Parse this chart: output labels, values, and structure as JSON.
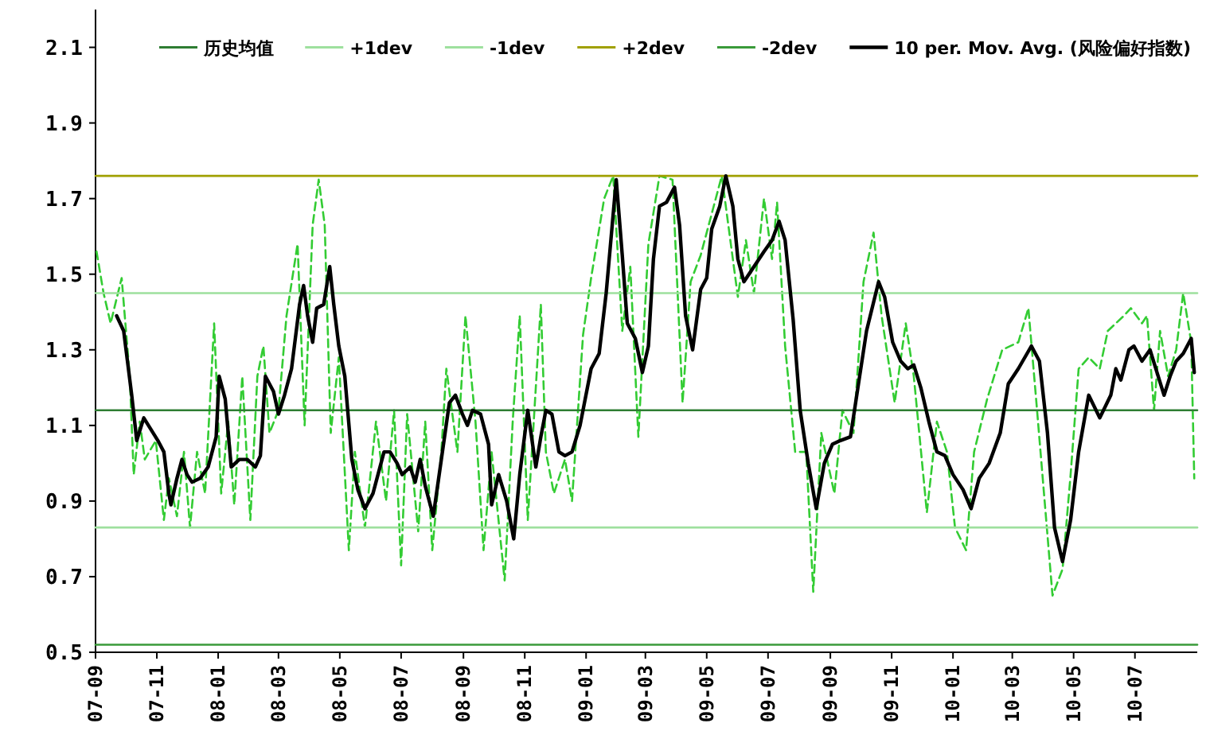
{
  "chart_data": {
    "type": "line",
    "legend": "top",
    "ylim": [
      0.5,
      2.2
    ],
    "yticks": [
      0.5,
      0.7,
      0.9,
      1.1,
      1.3,
      1.5,
      1.7,
      1.9,
      2.1
    ],
    "xlim": [
      "2007-09-01",
      "2010-09-01"
    ],
    "xticks": [
      {
        "value": "2007-09-01",
        "label": "07-09"
      },
      {
        "value": "2007-11-01",
        "label": "07-11"
      },
      {
        "value": "2008-01-01",
        "label": "08-01"
      },
      {
        "value": "2008-03-01",
        "label": "08-03"
      },
      {
        "value": "2008-05-01",
        "label": "08-05"
      },
      {
        "value": "2008-07-01",
        "label": "08-07"
      },
      {
        "value": "2008-09-01",
        "label": "08-09"
      },
      {
        "value": "2008-11-01",
        "label": "08-11"
      },
      {
        "value": "2009-01-01",
        "label": "09-01"
      },
      {
        "value": "2009-03-01",
        "label": "09-03"
      },
      {
        "value": "2009-05-01",
        "label": "09-05"
      },
      {
        "value": "2009-07-01",
        "label": "09-07"
      },
      {
        "value": "2009-09-01",
        "label": "09-09"
      },
      {
        "value": "2009-11-01",
        "label": "09-11"
      },
      {
        "value": "2010-01-01",
        "label": "10-01"
      },
      {
        "value": "2010-03-01",
        "label": "10-03"
      },
      {
        "value": "2010-05-01",
        "label": "10-05"
      },
      {
        "value": "2010-07-01",
        "label": "10-07"
      }
    ],
    "series": [
      {
        "color": "#33cc33",
        "line_style": "dashed",
        "x": [
          "2007-09-02",
          "2007-09-09",
          "2007-09-16",
          "2007-09-27",
          "2007-10-05",
          "2007-10-09",
          "2007-10-15",
          "2007-10-20",
          "2007-10-31",
          "2007-11-08",
          "2007-11-13",
          "2007-11-21",
          "2007-11-28",
          "2007-12-04",
          "2007-12-11",
          "2007-12-19",
          "2007-12-28",
          "2008-01-04",
          "2008-01-11",
          "2008-01-17",
          "2008-01-25",
          "2008-02-02",
          "2008-02-09",
          "2008-02-15",
          "2008-02-21",
          "2008-03-01",
          "2008-03-09",
          "2008-03-20",
          "2008-03-27",
          "2008-04-04",
          "2008-04-10",
          "2008-04-16",
          "2008-04-22",
          "2008-04-30",
          "2008-05-10",
          "2008-05-16",
          "2008-05-26",
          "2008-06-06",
          "2008-06-16",
          "2008-06-24",
          "2008-07-01",
          "2008-07-07",
          "2008-07-18",
          "2008-07-25",
          "2008-08-01",
          "2008-08-10",
          "2008-08-15",
          "2008-08-26",
          "2008-09-03",
          "2008-09-13",
          "2008-09-21",
          "2008-09-29",
          "2008-10-12",
          "2008-10-20",
          "2008-10-27",
          "2008-11-04",
          "2008-11-17",
          "2008-11-22",
          "2008-11-30",
          "2008-12-11",
          "2008-12-18",
          "2008-12-29",
          "2009-01-06",
          "2009-01-19",
          "2009-01-28",
          "2009-02-06",
          "2009-02-14",
          "2009-02-22",
          "2009-03-04",
          "2009-03-15",
          "2009-03-28",
          "2009-04-07",
          "2009-04-15",
          "2009-04-25",
          "2009-05-06",
          "2009-05-16",
          "2009-06-01",
          "2009-06-09",
          "2009-06-17",
          "2009-06-27",
          "2009-07-05",
          "2009-07-10",
          "2009-07-18",
          "2009-07-28",
          "2009-08-08",
          "2009-08-15",
          "2009-08-23",
          "2009-09-05",
          "2009-09-13",
          "2009-09-24",
          "2009-10-04",
          "2009-10-14",
          "2009-10-22",
          "2009-11-04",
          "2009-11-15",
          "2009-11-23",
          "2009-12-06",
          "2009-12-16",
          "2009-12-26",
          "2010-01-03",
          "2010-01-14",
          "2010-01-22",
          "2010-02-04",
          "2010-02-19",
          "2010-03-07",
          "2010-03-17",
          "2010-03-25",
          "2010-04-10",
          "2010-04-20",
          "2010-04-28",
          "2010-05-06",
          "2010-05-16",
          "2010-05-27",
          "2010-06-04",
          "2010-06-20",
          "2010-06-27",
          "2010-07-08",
          "2010-07-13",
          "2010-07-20",
          "2010-07-26",
          "2010-08-03",
          "2010-08-11",
          "2010-08-18",
          "2010-08-26",
          "2010-08-29"
        ],
        "values": [
          1.56,
          1.45,
          1.37,
          1.49,
          1.23,
          0.97,
          1.11,
          1.01,
          1.06,
          0.85,
          0.96,
          0.86,
          1.03,
          0.83,
          1.03,
          0.92,
          1.37,
          0.92,
          1.11,
          0.89,
          1.23,
          0.85,
          1.23,
          1.31,
          1.08,
          1.14,
          1.39,
          1.58,
          1.1,
          1.63,
          1.75,
          1.63,
          1.08,
          1.28,
          0.77,
          1.03,
          0.83,
          1.11,
          0.9,
          1.14,
          0.73,
          1.13,
          0.82,
          1.11,
          0.77,
          1.03,
          1.25,
          1.03,
          1.39,
          1.11,
          0.77,
          1.03,
          0.69,
          1.11,
          1.39,
          0.85,
          1.42,
          1.03,
          0.92,
          1.01,
          0.9,
          1.34,
          1.49,
          1.7,
          1.76,
          1.35,
          1.52,
          1.07,
          1.58,
          1.76,
          1.75,
          1.16,
          1.48,
          1.55,
          1.66,
          1.76,
          1.44,
          1.59,
          1.45,
          1.7,
          1.54,
          1.69,
          1.31,
          1.03,
          1.03,
          0.66,
          1.08,
          0.92,
          1.14,
          1.08,
          1.48,
          1.61,
          1.39,
          1.16,
          1.37,
          1.23,
          0.87,
          1.11,
          1.03,
          0.83,
          0.77,
          1.03,
          1.17,
          1.3,
          1.32,
          1.41,
          1.16,
          0.65,
          0.72,
          0.97,
          1.25,
          1.28,
          1.25,
          1.35,
          1.39,
          1.41,
          1.37,
          1.39,
          1.14,
          1.35,
          1.23,
          1.3,
          1.45,
          1.32,
          0.96
        ]
      },
      {
        "name": "历史均值",
        "color": "#2e7d32",
        "line_style": "solid",
        "x": [
          "2007-09-01",
          "2010-09-01"
        ],
        "values": [
          1.14,
          1.14
        ]
      },
      {
        "name": "+1dev",
        "color": "#9ee09e",
        "line_style": "solid",
        "x": [
          "2007-09-01",
          "2010-09-01"
        ],
        "values": [
          1.45,
          1.45
        ]
      },
      {
        "name": "-1dev",
        "color": "#9ee09e",
        "line_style": "solid",
        "x": [
          "2007-09-01",
          "2010-09-01"
        ],
        "values": [
          0.83,
          0.83
        ]
      },
      {
        "name": "+2dev",
        "color": "#a0a000",
        "line_style": "solid",
        "x": [
          "2007-09-01",
          "2010-09-01"
        ],
        "values": [
          1.76,
          1.76
        ]
      },
      {
        "name": "-2dev",
        "color": "#3a9a3a",
        "line_style": "solid",
        "x": [
          "2007-09-01",
          "2010-09-01"
        ],
        "values": [
          0.52,
          0.52
        ]
      },
      {
        "name": "10 per. Mov. Avg. (风险偏好指数)",
        "color": "#000000",
        "line_style": "solid",
        "x": [
          "2007-09-22",
          "2007-09-29",
          "2007-10-07",
          "2007-10-12",
          "2007-10-19",
          "2007-10-26",
          "2007-11-02",
          "2007-11-08",
          "2007-11-13",
          "2007-11-15",
          "2007-11-21",
          "2007-11-26",
          "2007-12-01",
          "2007-12-06",
          "2007-12-14",
          "2007-12-22",
          "2007-12-30",
          "2008-01-02",
          "2008-01-08",
          "2008-01-14",
          "2008-01-22",
          "2008-01-30",
          "2008-02-07",
          "2008-02-12",
          "2008-02-17",
          "2008-02-25",
          "2008-03-01",
          "2008-03-07",
          "2008-03-14",
          "2008-03-22",
          "2008-03-26",
          "2008-03-30",
          "2008-04-04",
          "2008-04-08",
          "2008-04-15",
          "2008-04-21",
          "2008-04-25",
          "2008-04-30",
          "2008-05-06",
          "2008-05-13",
          "2008-05-19",
          "2008-05-26",
          "2008-06-03",
          "2008-06-14",
          "2008-06-20",
          "2008-06-27",
          "2008-07-02",
          "2008-07-10",
          "2008-07-15",
          "2008-07-20",
          "2008-07-25",
          "2008-08-02",
          "2008-08-10",
          "2008-08-18",
          "2008-08-24",
          "2008-08-31",
          "2008-09-05",
          "2008-09-10",
          "2008-09-18",
          "2008-09-26",
          "2008-09-29",
          "2008-10-06",
          "2008-10-14",
          "2008-10-21",
          "2008-10-27",
          "2008-11-04",
          "2008-11-12",
          "2008-11-17",
          "2008-11-22",
          "2008-11-28",
          "2008-12-05",
          "2008-12-11",
          "2008-12-18",
          "2008-12-26",
          "2009-01-06",
          "2009-01-14",
          "2009-01-21",
          "2009-01-31",
          "2009-02-06",
          "2009-02-11",
          "2009-02-19",
          "2009-02-26",
          "2009-03-04",
          "2009-03-09",
          "2009-03-15",
          "2009-03-22",
          "2009-03-30",
          "2009-04-04",
          "2009-04-10",
          "2009-04-17",
          "2009-04-25",
          "2009-05-01",
          "2009-05-06",
          "2009-05-14",
          "2009-05-20",
          "2009-05-27",
          "2009-06-01",
          "2009-06-07",
          "2009-06-17",
          "2009-06-27",
          "2009-07-05",
          "2009-07-12",
          "2009-07-18",
          "2009-07-26",
          "2009-08-02",
          "2009-08-10",
          "2009-08-18",
          "2009-08-26",
          "2009-09-03",
          "2009-09-11",
          "2009-09-21",
          "2009-09-29",
          "2009-10-07",
          "2009-10-19",
          "2009-10-25",
          "2009-11-02",
          "2009-11-10",
          "2009-11-17",
          "2009-11-23",
          "2009-11-30",
          "2009-12-08",
          "2009-12-16",
          "2009-12-24",
          "2010-01-01",
          "2010-01-11",
          "2010-01-19",
          "2010-01-27",
          "2010-02-06",
          "2010-02-17",
          "2010-02-25",
          "2010-03-07",
          "2010-03-20",
          "2010-03-28",
          "2010-04-05",
          "2010-04-12",
          "2010-04-20",
          "2010-04-28",
          "2010-05-06",
          "2010-05-16",
          "2010-05-27",
          "2010-06-07",
          "2010-06-12",
          "2010-06-17",
          "2010-06-25",
          "2010-06-30",
          "2010-07-08",
          "2010-07-16",
          "2010-07-23",
          "2010-07-30",
          "2010-08-05",
          "2010-08-11",
          "2010-08-18",
          "2010-08-24",
          "2010-08-26",
          "2010-08-29"
        ],
        "values": [
          1.39,
          1.35,
          1.18,
          1.06,
          1.12,
          1.09,
          1.06,
          1.03,
          0.92,
          0.89,
          0.96,
          1.01,
          0.97,
          0.95,
          0.96,
          0.99,
          1.07,
          1.23,
          1.17,
          0.99,
          1.01,
          1.01,
          0.99,
          1.02,
          1.23,
          1.19,
          1.13,
          1.18,
          1.25,
          1.42,
          1.47,
          1.39,
          1.32,
          1.41,
          1.42,
          1.52,
          1.42,
          1.31,
          1.23,
          1.01,
          0.93,
          0.88,
          0.92,
          1.03,
          1.03,
          1.0,
          0.97,
          0.99,
          0.95,
          1.01,
          0.94,
          0.86,
          1.01,
          1.16,
          1.18,
          1.13,
          1.1,
          1.14,
          1.13,
          1.05,
          0.89,
          0.97,
          0.9,
          0.8,
          0.97,
          1.14,
          0.99,
          1.07,
          1.14,
          1.13,
          1.03,
          1.02,
          1.03,
          1.1,
          1.25,
          1.29,
          1.45,
          1.75,
          1.55,
          1.37,
          1.33,
          1.24,
          1.31,
          1.54,
          1.68,
          1.69,
          1.73,
          1.63,
          1.39,
          1.3,
          1.46,
          1.49,
          1.62,
          1.68,
          1.76,
          1.68,
          1.54,
          1.48,
          1.52,
          1.56,
          1.59,
          1.64,
          1.59,
          1.38,
          1.14,
          1.0,
          0.88,
          1.0,
          1.05,
          1.06,
          1.07,
          1.21,
          1.35,
          1.48,
          1.44,
          1.32,
          1.27,
          1.25,
          1.26,
          1.2,
          1.11,
          1.03,
          1.02,
          0.97,
          0.93,
          0.88,
          0.96,
          1.0,
          1.08,
          1.21,
          1.25,
          1.31,
          1.27,
          1.08,
          0.83,
          0.74,
          0.85,
          1.03,
          1.18,
          1.12,
          1.18,
          1.25,
          1.22,
          1.3,
          1.31,
          1.27,
          1.3,
          1.24,
          1.18,
          1.23,
          1.27,
          1.29,
          1.32,
          1.33,
          1.24
        ]
      }
    ]
  }
}
